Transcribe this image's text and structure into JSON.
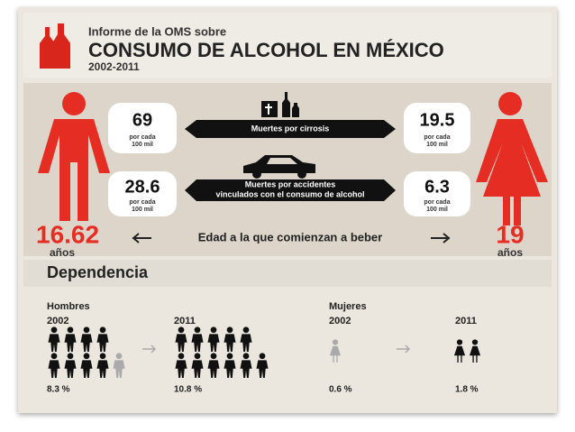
{
  "header": {
    "subtitle": "Informe de la OMS sobre",
    "title": "CONSUMO DE ALCOHOL EN MÉXICO",
    "period": "2002-2011"
  },
  "cirrhosis": {
    "label": "Muertes por cirrosis",
    "men": {
      "value": "69",
      "unit": [
        "por cada",
        "100 mil"
      ]
    },
    "women": {
      "value": "19.5",
      "unit": [
        "por cada",
        "100 mil"
      ]
    }
  },
  "accidents": {
    "label": [
      "Muertes por accidentes",
      "vinculados con el consumo de alcohol"
    ],
    "men": {
      "value": "28.6",
      "unit": [
        "por cada",
        "100 mil"
      ]
    },
    "women": {
      "value": "6.3",
      "unit": [
        "por cada",
        "100 mil"
      ]
    }
  },
  "starting_age": {
    "label": "Edad a la que comienzan a beber",
    "men": {
      "value": "16.62",
      "unit": "años"
    },
    "women": {
      "value": "19",
      "unit": "años"
    }
  },
  "dependence": {
    "title": "Dependencia",
    "men": {
      "label": "Hombres",
      "years": [
        {
          "year": "2002",
          "value": "8.3 %"
        },
        {
          "year": "2011",
          "value": "10.8 %"
        }
      ]
    },
    "women": {
      "label": "Mujeres",
      "years": [
        {
          "year": "2002",
          "value": "0.6 %"
        },
        {
          "year": "2011",
          "value": "1.8 %"
        }
      ]
    }
  }
}
